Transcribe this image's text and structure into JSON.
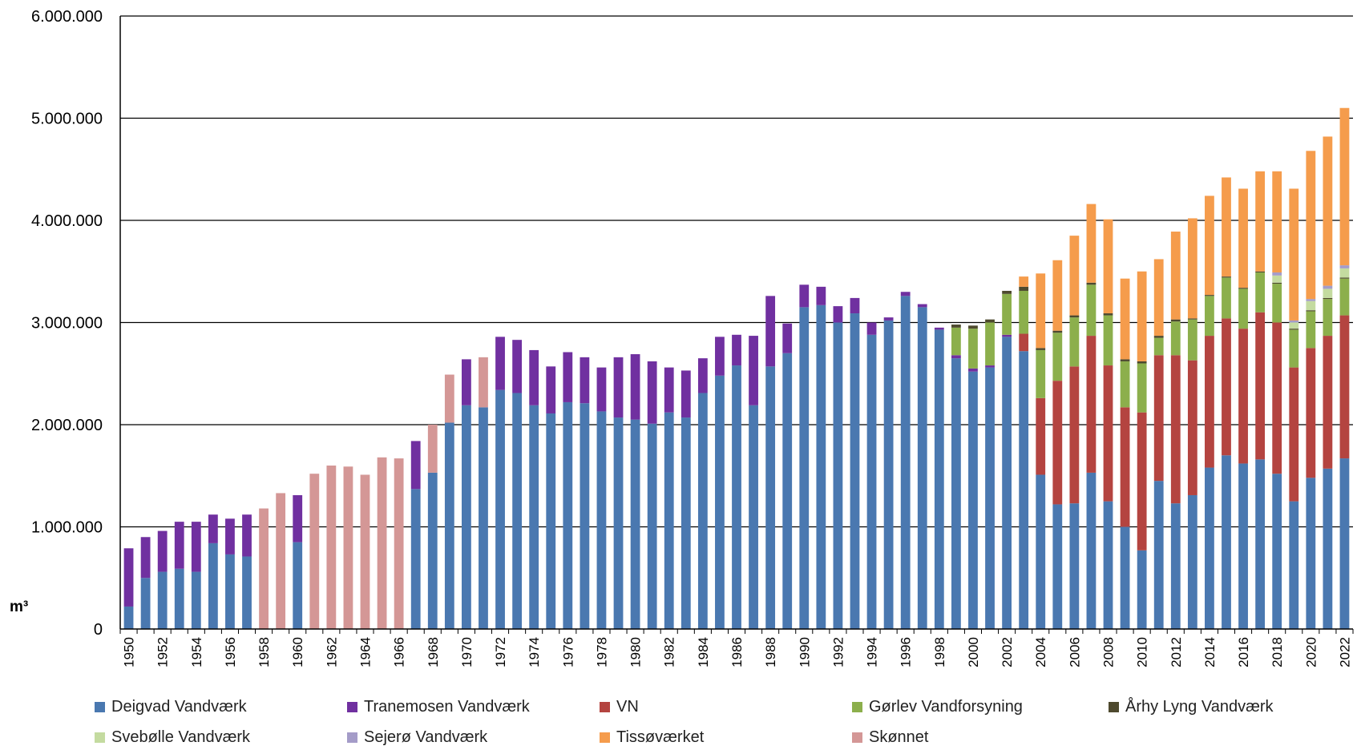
{
  "chart_data": {
    "type": "bar",
    "stacked": true,
    "title": "",
    "xlabel": "",
    "ylabel": "m³",
    "ylim": [
      0,
      6000000
    ],
    "yticks": [
      0,
      1000000,
      2000000,
      3000000,
      4000000,
      5000000,
      6000000
    ],
    "ytick_labels": [
      "0",
      "1.000.000",
      "2.000.000",
      "3.000.000",
      "4.000.000",
      "5.000.000",
      "6.000.000"
    ],
    "grid": "horizontal",
    "legend_position": "bottom",
    "categories": [
      "1950",
      "1951",
      "1952",
      "1953",
      "1954",
      "1955",
      "1956",
      "1957",
      "1958",
      "1959",
      "1960",
      "1961",
      "1962",
      "1963",
      "1964",
      "1965",
      "1966",
      "1967",
      "1968",
      "1969",
      "1970",
      "1971",
      "1972",
      "1973",
      "1974",
      "1975",
      "1976",
      "1977",
      "1978",
      "1979",
      "1980",
      "1981",
      "1982",
      "1983",
      "1984",
      "1985",
      "1986",
      "1987",
      "1988",
      "1989",
      "1990",
      "1991",
      "1992",
      "1993",
      "1994",
      "1995",
      "1996",
      "1997",
      "1998",
      "1999",
      "2000",
      "2001",
      "2002",
      "2003",
      "2004",
      "2005",
      "2006",
      "2007",
      "2008",
      "2009",
      "2010",
      "2011",
      "2012",
      "2013",
      "2014",
      "2015",
      "2016",
      "2017",
      "2018",
      "2019",
      "2020",
      "2021",
      "2022"
    ],
    "x_tick_labels": [
      "1950",
      "1952",
      "1954",
      "1956",
      "1958",
      "1960",
      "1962",
      "1964",
      "1966",
      "1968",
      "1970",
      "1972",
      "1974",
      "1976",
      "1978",
      "1980",
      "1982",
      "1984",
      "1986",
      "1988",
      "1990",
      "1992",
      "1994",
      "1996",
      "1998",
      "2000",
      "2002",
      "2004",
      "2006",
      "2008",
      "2010",
      "2012",
      "2014",
      "2016",
      "2018",
      "2020",
      "2022"
    ],
    "series": [
      {
        "name": "Deigvad Vandværk",
        "color": "#4a78b0",
        "values": [
          220000,
          500000,
          560000,
          590000,
          560000,
          840000,
          730000,
          710000,
          0,
          0,
          850000,
          0,
          0,
          0,
          0,
          0,
          0,
          1370000,
          1530000,
          2020000,
          2190000,
          2170000,
          2340000,
          2310000,
          2190000,
          2110000,
          2220000,
          2210000,
          2130000,
          2070000,
          2050000,
          2010000,
          2120000,
          2070000,
          2310000,
          2480000,
          2580000,
          2190000,
          2570000,
          2700000,
          3150000,
          3170000,
          3000000,
          3090000,
          2880000,
          3020000,
          3260000,
          3150000,
          2930000,
          2650000,
          2520000,
          2560000,
          2860000,
          2720000,
          1510000,
          1220000,
          1230000,
          1530000,
          1250000,
          1000000,
          770000,
          1450000,
          1230000,
          1310000,
          1580000,
          1700000,
          1620000,
          1660000,
          1520000,
          1250000,
          1480000,
          1570000,
          1670000
        ]
      },
      {
        "name": "Tranemosen Vandværk",
        "color": "#7030a0",
        "values": [
          570000,
          400000,
          400000,
          460000,
          490000,
          280000,
          350000,
          410000,
          0,
          0,
          460000,
          0,
          0,
          0,
          0,
          0,
          0,
          470000,
          0,
          0,
          450000,
          0,
          520000,
          520000,
          540000,
          460000,
          490000,
          450000,
          430000,
          590000,
          640000,
          610000,
          440000,
          460000,
          340000,
          380000,
          300000,
          680000,
          690000,
          290000,
          220000,
          180000,
          160000,
          150000,
          120000,
          30000,
          40000,
          30000,
          20000,
          30000,
          30000,
          20000,
          20000,
          0,
          0,
          0,
          0,
          0,
          0,
          0,
          0,
          0,
          0,
          0,
          0,
          0,
          0,
          0,
          0,
          0,
          0,
          0,
          0
        ]
      },
      {
        "name": "VN",
        "color": "#b44440",
        "values": [
          0,
          0,
          0,
          0,
          0,
          0,
          0,
          0,
          0,
          0,
          0,
          0,
          0,
          0,
          0,
          0,
          0,
          0,
          0,
          0,
          0,
          0,
          0,
          0,
          0,
          0,
          0,
          0,
          0,
          0,
          0,
          0,
          0,
          0,
          0,
          0,
          0,
          0,
          0,
          0,
          0,
          0,
          0,
          0,
          0,
          0,
          0,
          0,
          0,
          0,
          0,
          0,
          0,
          170000,
          750000,
          1210000,
          1340000,
          1340000,
          1330000,
          1170000,
          1350000,
          1230000,
          1450000,
          1320000,
          1290000,
          1340000,
          1320000,
          1440000,
          1480000,
          1310000,
          1270000,
          1300000,
          1400000
        ]
      },
      {
        "name": "Gørlev Vandforsyning",
        "color": "#8caf4c",
        "values": [
          0,
          0,
          0,
          0,
          0,
          0,
          0,
          0,
          0,
          0,
          0,
          0,
          0,
          0,
          0,
          0,
          0,
          0,
          0,
          0,
          0,
          0,
          0,
          0,
          0,
          0,
          0,
          0,
          0,
          0,
          0,
          0,
          0,
          0,
          0,
          0,
          0,
          0,
          0,
          0,
          0,
          0,
          0,
          0,
          0,
          0,
          0,
          0,
          0,
          270000,
          390000,
          420000,
          400000,
          420000,
          470000,
          470000,
          480000,
          500000,
          490000,
          450000,
          480000,
          170000,
          330000,
          400000,
          390000,
          400000,
          390000,
          390000,
          380000,
          370000,
          360000,
          360000,
          360000
        ]
      },
      {
        "name": "Århy Lyng Vandværk",
        "color": "#4e4a2e",
        "values": [
          0,
          0,
          0,
          0,
          0,
          0,
          0,
          0,
          0,
          0,
          0,
          0,
          0,
          0,
          0,
          0,
          0,
          0,
          0,
          0,
          0,
          0,
          0,
          0,
          0,
          0,
          0,
          0,
          0,
          0,
          0,
          0,
          0,
          0,
          0,
          0,
          0,
          0,
          0,
          0,
          0,
          0,
          0,
          0,
          0,
          0,
          0,
          0,
          0,
          30000,
          30000,
          30000,
          30000,
          40000,
          20000,
          20000,
          20000,
          20000,
          20000,
          20000,
          20000,
          20000,
          20000,
          10000,
          10000,
          10000,
          10000,
          10000,
          10000,
          10000,
          10000,
          10000,
          10000
        ]
      },
      {
        "name": "Svebølle Vandværk",
        "color": "#c4dba0",
        "values": [
          0,
          0,
          0,
          0,
          0,
          0,
          0,
          0,
          0,
          0,
          0,
          0,
          0,
          0,
          0,
          0,
          0,
          0,
          0,
          0,
          0,
          0,
          0,
          0,
          0,
          0,
          0,
          0,
          0,
          0,
          0,
          0,
          0,
          0,
          0,
          0,
          0,
          0,
          0,
          0,
          0,
          0,
          0,
          0,
          0,
          0,
          0,
          0,
          0,
          0,
          0,
          0,
          0,
          0,
          0,
          0,
          0,
          0,
          0,
          0,
          0,
          0,
          0,
          0,
          0,
          0,
          0,
          0,
          70000,
          60000,
          90000,
          90000,
          90000
        ]
      },
      {
        "name": "Sejerø Vandværk",
        "color": "#a49cc8",
        "values": [
          0,
          0,
          0,
          0,
          0,
          0,
          0,
          0,
          0,
          0,
          0,
          0,
          0,
          0,
          0,
          0,
          0,
          0,
          0,
          0,
          0,
          0,
          0,
          0,
          0,
          0,
          0,
          0,
          0,
          0,
          0,
          0,
          0,
          0,
          0,
          0,
          0,
          0,
          0,
          0,
          0,
          0,
          0,
          0,
          0,
          0,
          0,
          0,
          0,
          0,
          0,
          0,
          0,
          0,
          0,
          0,
          0,
          0,
          0,
          0,
          0,
          0,
          0,
          0,
          0,
          0,
          0,
          0,
          30000,
          20000,
          20000,
          30000,
          30000
        ]
      },
      {
        "name": "Tissøværket",
        "color": "#f59c4c",
        "values": [
          0,
          0,
          0,
          0,
          0,
          0,
          0,
          0,
          0,
          0,
          0,
          0,
          0,
          0,
          0,
          0,
          0,
          0,
          0,
          0,
          0,
          0,
          0,
          0,
          0,
          0,
          0,
          0,
          0,
          0,
          0,
          0,
          0,
          0,
          0,
          0,
          0,
          0,
          0,
          0,
          0,
          0,
          0,
          0,
          0,
          0,
          0,
          0,
          0,
          0,
          0,
          0,
          0,
          100000,
          730000,
          690000,
          780000,
          770000,
          920000,
          790000,
          880000,
          750000,
          860000,
          980000,
          970000,
          970000,
          970000,
          980000,
          990000,
          1290000,
          1450000,
          1460000,
          1540000
        ]
      },
      {
        "name": "Skønnet",
        "color": "#d49796",
        "values": [
          0,
          0,
          0,
          0,
          0,
          0,
          0,
          0,
          1180000,
          1330000,
          0,
          1520000,
          1600000,
          1590000,
          1510000,
          1680000,
          1670000,
          0,
          470000,
          470000,
          0,
          490000,
          0,
          0,
          0,
          0,
          0,
          0,
          0,
          0,
          0,
          0,
          0,
          0,
          0,
          0,
          0,
          0,
          0,
          0,
          0,
          0,
          0,
          0,
          0,
          0,
          0,
          0,
          0,
          0,
          0,
          0,
          0,
          0,
          0,
          0,
          0,
          0,
          0,
          0,
          0,
          0,
          0,
          0,
          0,
          0,
          0,
          0,
          0,
          0,
          0,
          0,
          0
        ]
      }
    ]
  }
}
